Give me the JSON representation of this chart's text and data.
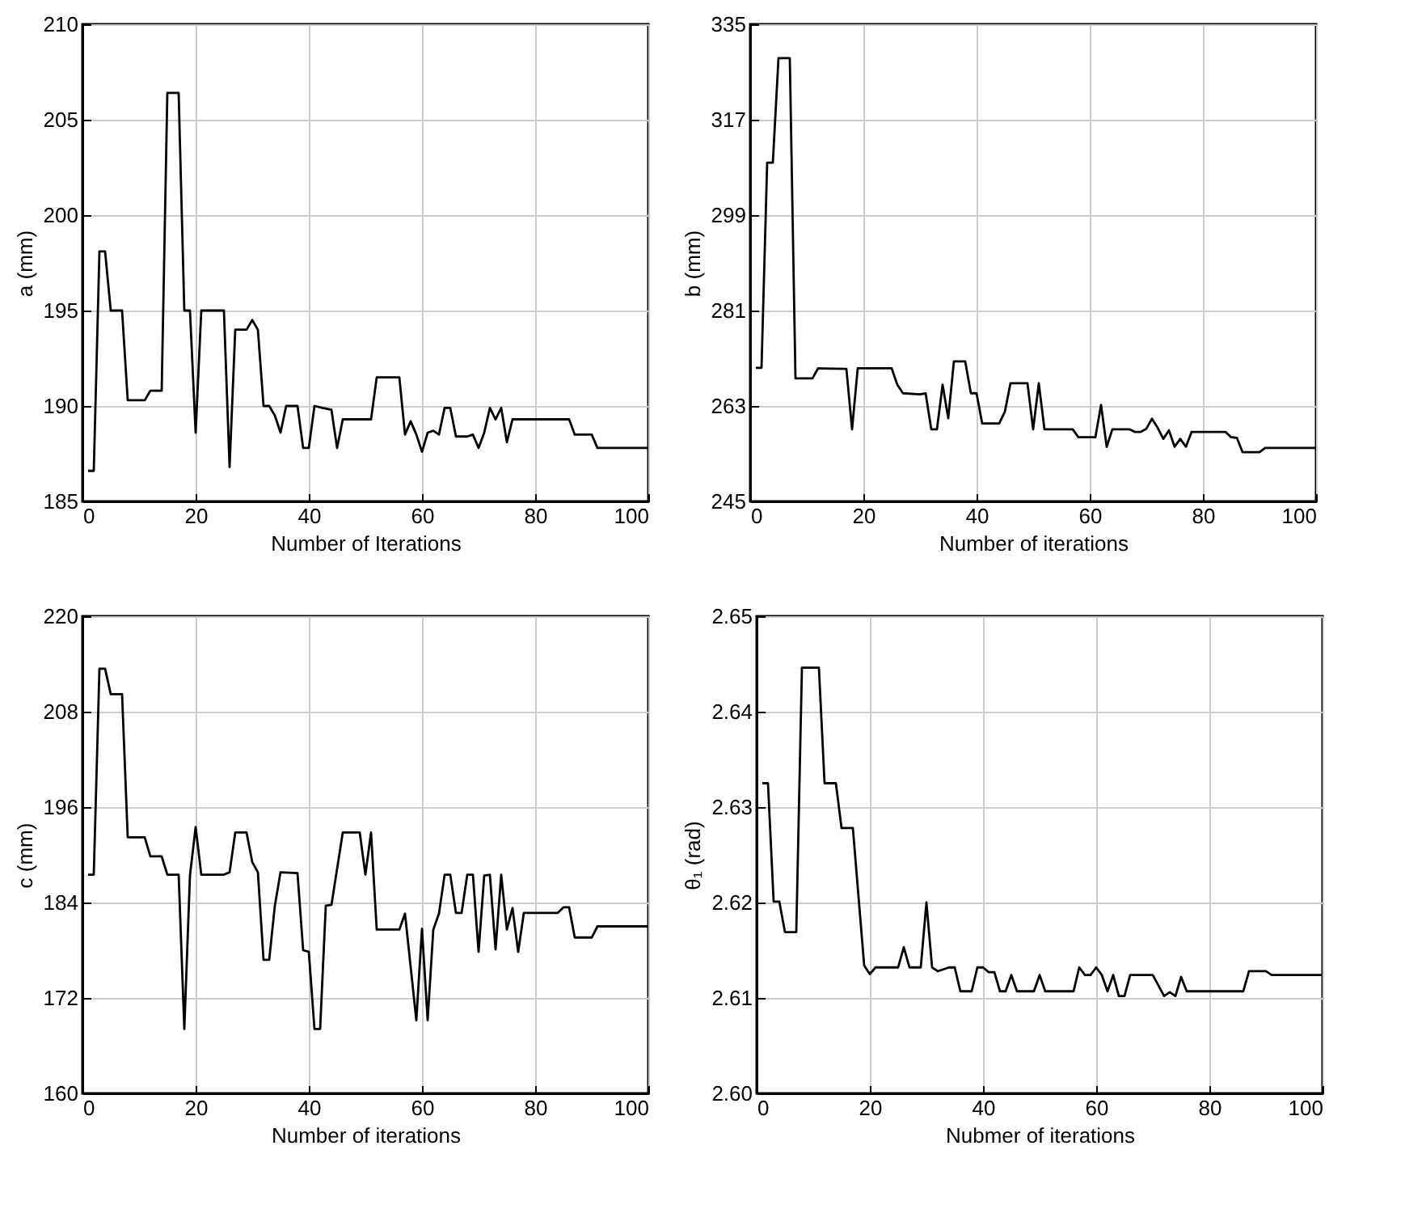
{
  "chart_data": [
    {
      "type": "line",
      "xlabel": "Number of Iterations",
      "ylabel": "a (mm)",
      "xlim": [
        0,
        100
      ],
      "xticks": [
        0,
        20,
        40,
        60,
        80,
        100
      ],
      "ylim": [
        185,
        210
      ],
      "yticks": [
        185,
        190,
        195,
        200,
        205,
        210
      ],
      "grid": true,
      "line_style": "solid",
      "series": [
        {
          "color": "#000000",
          "x": [
            1,
            2,
            3,
            4,
            5,
            7,
            8,
            11,
            12,
            14,
            15,
            17,
            18,
            19,
            20,
            21,
            25,
            26,
            27,
            29,
            30,
            31,
            32,
            33,
            34,
            35,
            36,
            38,
            39,
            40,
            41,
            42.4,
            44,
            45,
            46,
            51,
            52,
            56,
            57,
            58,
            59,
            60,
            61,
            62,
            63,
            64,
            65,
            66,
            68,
            69,
            70,
            71,
            72,
            73,
            74,
            75,
            76,
            86,
            87,
            90,
            91,
            100
          ],
          "values": [
            186.6,
            186.6,
            198.1,
            198.1,
            195.0,
            195.0,
            190.3,
            190.3,
            190.8,
            190.8,
            206.4,
            206.4,
            195.0,
            195.0,
            188.6,
            195.0,
            195.0,
            186.8,
            194.0,
            194.0,
            194.5,
            194.0,
            190.0,
            190.0,
            189.5,
            188.6,
            190.0,
            190.0,
            187.8,
            187.8,
            190.0,
            189.9,
            189.8,
            187.8,
            189.3,
            189.3,
            191.5,
            191.5,
            188.5,
            189.2,
            188.5,
            187.6,
            188.6,
            188.7,
            188.5,
            189.9,
            189.9,
            188.4,
            188.4,
            188.5,
            187.8,
            188.6,
            189.9,
            189.3,
            189.9,
            188.1,
            189.3,
            189.3,
            188.5,
            188.5,
            187.8,
            187.8
          ]
        }
      ]
    },
    {
      "type": "line",
      "xlabel": "Number of iterations",
      "ylabel": "b (mm)",
      "xlim": [
        0,
        100
      ],
      "xticks": [
        0,
        20,
        40,
        60,
        80,
        100
      ],
      "ylim": [
        245,
        335
      ],
      "yticks": [
        245,
        263,
        281,
        299,
        317,
        335
      ],
      "grid": true,
      "line_style": "solid",
      "series": [
        {
          "color": "#000000",
          "x": [
            1,
            2,
            3,
            4,
            5,
            7,
            8,
            11,
            12,
            17,
            18,
            19,
            25,
            26,
            27,
            30,
            31,
            32,
            33,
            34,
            35,
            36,
            38,
            39,
            40,
            41,
            44,
            45,
            46,
            49,
            50,
            51,
            52,
            57,
            58,
            61,
            62,
            63,
            64,
            67,
            68,
            69,
            70,
            71,
            72,
            73,
            74,
            75,
            76,
            77,
            78,
            84,
            85,
            86,
            87,
            90,
            91,
            100
          ],
          "values": [
            270.2,
            270.2,
            308.9,
            308.9,
            328.6,
            328.6,
            268.2,
            268.2,
            270.1,
            270.0,
            258.6,
            270.1,
            270.1,
            267.0,
            265.4,
            265.2,
            265.4,
            258.6,
            258.6,
            267.0,
            260.7,
            271.4,
            271.4,
            265.4,
            265.4,
            259.7,
            259.7,
            261.9,
            267.3,
            267.3,
            258.6,
            267.3,
            258.6,
            258.6,
            257.1,
            257.1,
            263.2,
            255.3,
            258.6,
            258.6,
            258.1,
            258.1,
            258.7,
            260.6,
            258.9,
            256.8,
            258.4,
            255.3,
            256.8,
            255.3,
            258.1,
            258.1,
            257.1,
            257.0,
            254.3,
            254.3,
            255.1,
            255.1
          ]
        }
      ]
    },
    {
      "type": "line",
      "xlabel": "Number of iterations",
      "ylabel": "c (mm)",
      "xlim": [
        0,
        100
      ],
      "xticks": [
        0,
        20,
        40,
        60,
        80,
        100
      ],
      "ylim": [
        160,
        220
      ],
      "yticks": [
        160,
        172,
        184,
        196,
        208,
        220
      ],
      "grid": true,
      "line_style": "solid",
      "series": [
        {
          "color": "#000000",
          "x": [
            1,
            2,
            3,
            4,
            5,
            7,
            8,
            11,
            12,
            14,
            15,
            17,
            18,
            19,
            20,
            21,
            25,
            26,
            27,
            29,
            30,
            31,
            32,
            33,
            34,
            35,
            38,
            39,
            40,
            41,
            42,
            43,
            44,
            46,
            49,
            50,
            51,
            52,
            56,
            57,
            59,
            60,
            61,
            62,
            63,
            64,
            65,
            66,
            67,
            68,
            69,
            70,
            71,
            72,
            73,
            74,
            75,
            76,
            77,
            78,
            84,
            85,
            86,
            87,
            90,
            91,
            100
          ],
          "values": [
            187.5,
            187.5,
            213.4,
            213.4,
            210.2,
            210.2,
            192.2,
            192.2,
            189.8,
            189.8,
            187.5,
            187.5,
            168.1,
            187.4,
            193.5,
            187.5,
            187.5,
            187.8,
            192.8,
            192.8,
            189.1,
            187.8,
            176.8,
            176.8,
            183.6,
            187.8,
            187.7,
            178.0,
            177.8,
            168.1,
            168.1,
            183.6,
            183.7,
            192.8,
            192.8,
            187.5,
            192.8,
            180.6,
            180.6,
            182.6,
            169.2,
            180.7,
            169.2,
            180.6,
            182.6,
            187.5,
            187.5,
            182.7,
            182.7,
            187.5,
            187.5,
            177.8,
            187.4,
            187.5,
            178.1,
            187.5,
            180.6,
            183.3,
            177.8,
            182.7,
            182.7,
            183.4,
            183.4,
            179.6,
            179.6,
            181.0,
            181.0
          ]
        }
      ]
    },
    {
      "type": "line",
      "xlabel": "Nubmer of iterations",
      "ylabel": "θ₁ (rad)",
      "xlim": [
        0,
        100
      ],
      "xticks": [
        0,
        20,
        40,
        60,
        80,
        100
      ],
      "ylim": [
        2.6,
        2.65
      ],
      "yticks": [
        {
          "value": 2.6,
          "label": "2.60"
        },
        {
          "value": 2.61,
          "label": "2.61"
        },
        {
          "value": 2.62,
          "label": "2.62"
        },
        {
          "value": 2.63,
          "label": "2.63"
        },
        {
          "value": 2.64,
          "label": "2.64"
        },
        {
          "value": 2.65,
          "label": "2.65"
        }
      ],
      "grid": true,
      "line_style": "solid",
      "series": [
        {
          "color": "#000000",
          "x": [
            1,
            2,
            3,
            4,
            5,
            7,
            8,
            11,
            12,
            14,
            15,
            17,
            19,
            20,
            21,
            25,
            26,
            27,
            29,
            30,
            31,
            32,
            34,
            35,
            36,
            38,
            39,
            40,
            41,
            42,
            43,
            44,
            45,
            46,
            49,
            50,
            51,
            56,
            57,
            58,
            59,
            60,
            61,
            62,
            63,
            64,
            65,
            66,
            70,
            71,
            72,
            73,
            74,
            75,
            76,
            86,
            87,
            90,
            91,
            100
          ],
          "values": [
            2.6325,
            2.6325,
            2.6201,
            2.6201,
            2.6169,
            2.6169,
            2.6446,
            2.6446,
            2.6325,
            2.6325,
            2.6278,
            2.6278,
            2.6134,
            2.6125,
            2.6132,
            2.6132,
            2.6153,
            2.6132,
            2.6132,
            2.62,
            2.6132,
            2.6128,
            2.6132,
            2.6132,
            2.6107,
            2.6107,
            2.6132,
            2.6132,
            2.6127,
            2.6127,
            2.6107,
            2.6107,
            2.6124,
            2.6107,
            2.6107,
            2.6124,
            2.6107,
            2.6107,
            2.6132,
            2.6124,
            2.6124,
            2.6132,
            2.6124,
            2.6107,
            2.6124,
            2.6102,
            2.6102,
            2.6124,
            2.6124,
            2.6113,
            2.6102,
            2.6106,
            2.6102,
            2.6122,
            2.6107,
            2.6107,
            2.6128,
            2.6128,
            2.6124,
            2.6124
          ]
        }
      ]
    }
  ]
}
